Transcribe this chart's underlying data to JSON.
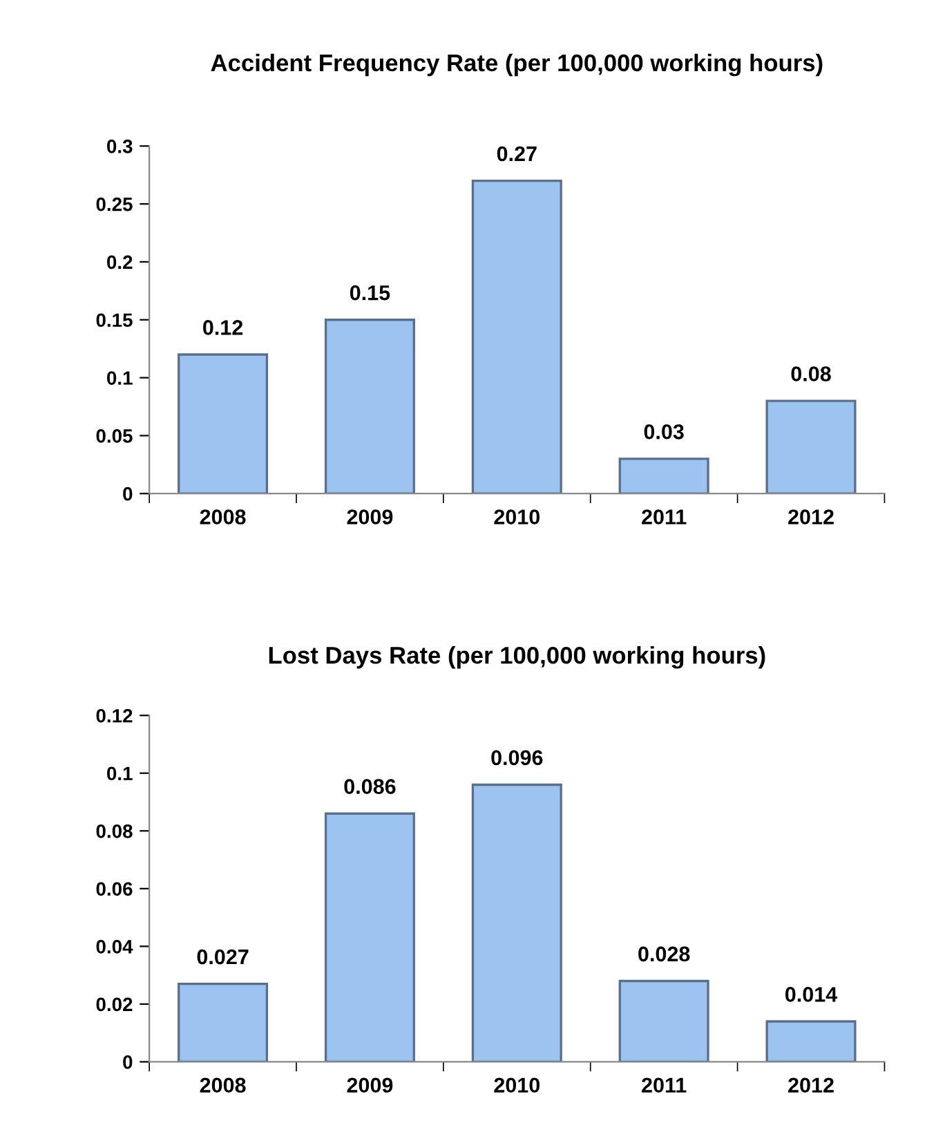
{
  "chart_data": [
    {
      "type": "bar",
      "title": "Accident Frequency Rate (per 100,000 working hours)",
      "categories": [
        "2008",
        "2009",
        "2010",
        "2011",
        "2012"
      ],
      "values": [
        0.12,
        0.15,
        0.27,
        0.03,
        0.08
      ],
      "color": "#9dc3f0",
      "ylim": [
        0,
        0.3
      ],
      "yticks": [
        0,
        0.05,
        0.1,
        0.15,
        0.2,
        0.25,
        0.3
      ],
      "data_labels": true,
      "grid": false,
      "legend": false
    },
    {
      "type": "bar",
      "title": "Lost Days Rate (per 100,000 working hours)",
      "categories": [
        "2008",
        "2009",
        "2010",
        "2011",
        "2012"
      ],
      "values": [
        0.027,
        0.086,
        0.096,
        0.028,
        0.014
      ],
      "color": "#9dc3f0",
      "ylim": [
        0,
        0.12
      ],
      "yticks": [
        0,
        0.02,
        0.04,
        0.06,
        0.08,
        0.1,
        0.12
      ],
      "data_labels": true,
      "grid": false,
      "legend": false
    }
  ]
}
